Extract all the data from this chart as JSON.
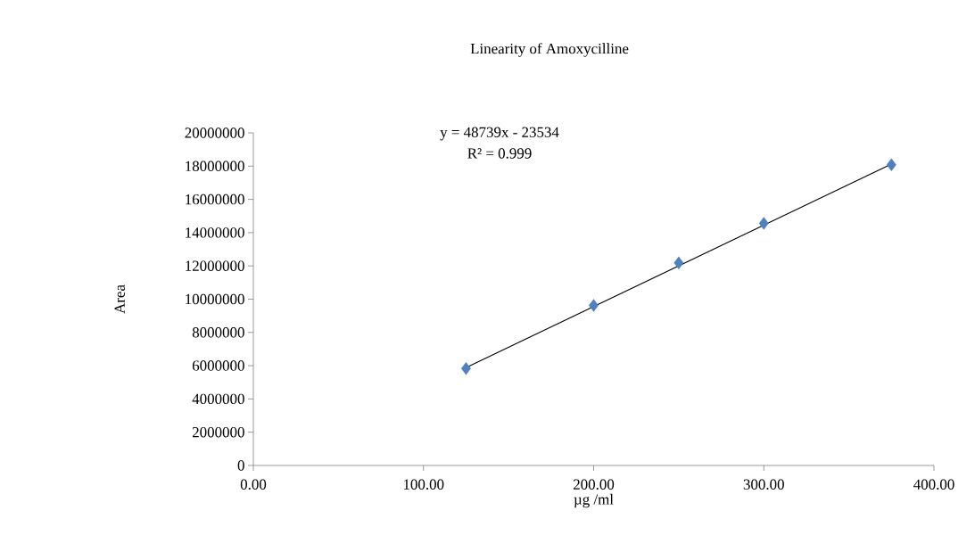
{
  "chart_data": {
    "type": "scatter",
    "title": "Linearity of Amoxycilline",
    "xlabel": "µg /ml",
    "ylabel": "Area",
    "series": [
      {
        "color": "#4f81bd",
        "marker": "diamond",
        "x": [
          125,
          200,
          250,
          300,
          375
        ],
        "values": [
          5830000,
          9620000,
          12180000,
          14560000,
          18080000
        ]
      },
      {
        "type": "line",
        "color": "#000000",
        "marker": "none",
        "line_style": "solid",
        "x": [
          125,
          375
        ],
        "values": [
          5890000,
          18120000
        ]
      }
    ],
    "annotations": [
      "y = 48739x - 23534",
      "R² = 0.999"
    ],
    "xlim": [
      0,
      400
    ],
    "xticks": [
      {
        "value": 0,
        "label": "0.00"
      },
      {
        "value": 100,
        "label": "100.00"
      },
      {
        "value": 200,
        "label": "200.00"
      },
      {
        "value": 300,
        "label": "300.00"
      },
      {
        "value": 400,
        "label": "400.00"
      }
    ],
    "ylim": [
      0,
      20000000
    ],
    "yticks": [
      0,
      2000000,
      4000000,
      6000000,
      8000000,
      10000000,
      12000000,
      14000000,
      16000000,
      18000000,
      20000000
    ],
    "grid": false
  }
}
